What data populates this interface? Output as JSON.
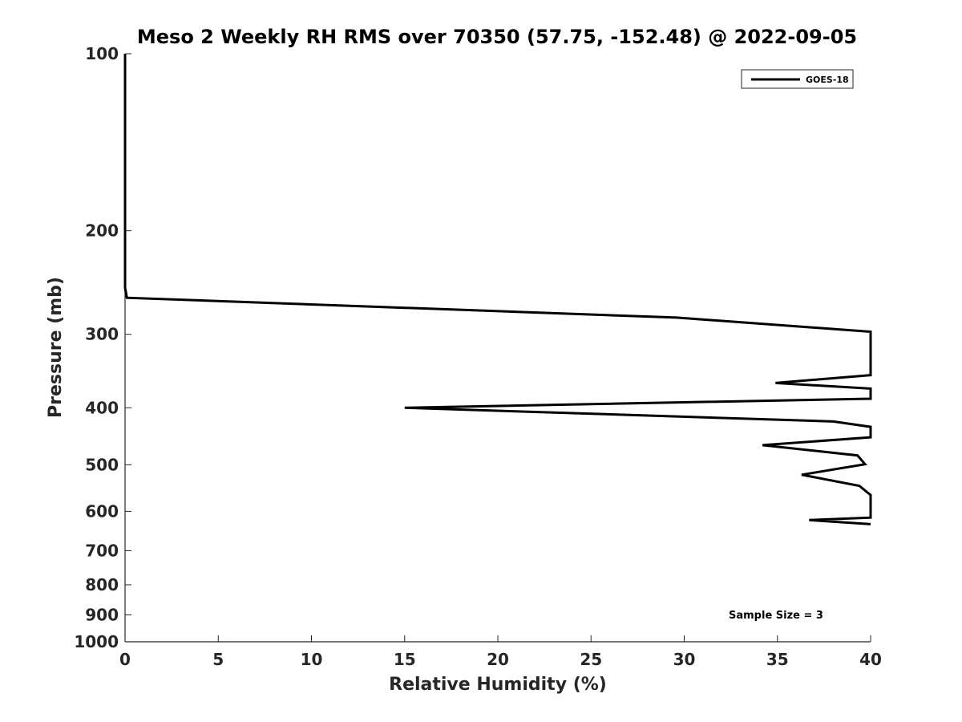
{
  "chart_data": {
    "type": "line",
    "title": "Meso 2 Weekly RH RMS over 70350 (57.75, -152.48) @ 2022-09-05",
    "xlabel": "Relative Humidity (%)",
    "ylabel": "Pressure (mb)",
    "xlim": [
      0,
      40
    ],
    "ylim": [
      100,
      1000
    ],
    "y_scale": "log",
    "y_inverted": true,
    "grid": false,
    "legend_position": "top-right",
    "x_ticks": [
      "0",
      "5",
      "10",
      "15",
      "20",
      "25",
      "30",
      "35",
      "40"
    ],
    "y_ticks": [
      "100",
      "200",
      "300",
      "400",
      "500",
      "600",
      "700",
      "800",
      "900",
      "1000"
    ],
    "series": [
      {
        "name": "GOES-18",
        "color": "#000000",
        "points": [
          [
            0.0,
            100
          ],
          [
            0.0,
            150
          ],
          [
            0.0,
            200
          ],
          [
            0.0,
            250
          ],
          [
            0.1,
            260
          ],
          [
            29.6,
            281
          ],
          [
            40.0,
            297
          ],
          [
            40.0,
            352
          ],
          [
            34.9,
            363
          ],
          [
            40.0,
            371
          ],
          [
            40.0,
            386
          ],
          [
            15.0,
            400
          ],
          [
            38.0,
            422
          ],
          [
            40.0,
            431
          ],
          [
            40.0,
            449
          ],
          [
            34.2,
            463
          ],
          [
            39.3,
            482
          ],
          [
            39.7,
            499
          ],
          [
            36.3,
            520
          ],
          [
            39.4,
            543
          ],
          [
            40.0,
            563
          ],
          [
            40.0,
            615
          ],
          [
            36.7,
            621
          ],
          [
            40.0,
            631
          ]
        ]
      }
    ],
    "annotations": [
      {
        "text": "Sample Size = 3",
        "position": "bottom-right"
      }
    ]
  }
}
